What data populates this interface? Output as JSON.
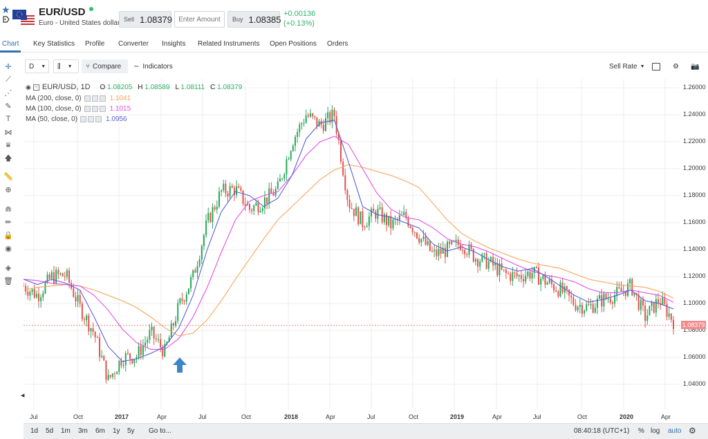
{
  "instrument": {
    "symbol": "EUR/USD",
    "description": "Euro - United States dollar",
    "sell_label": "Sell",
    "sell_price": "1.08379",
    "amount_placeholder": "Enter Amount",
    "buy_label": "Buy",
    "buy_price": "1.08385",
    "change_abs": "+0.00136",
    "change_pct": "(+0.13%)"
  },
  "tabs": [
    "Chart",
    "Key Statistics",
    "Profile",
    "Converter",
    "Insights",
    "Related Instruments",
    "Open Positions",
    "Orders"
  ],
  "toolbar": {
    "interval": "D",
    "compare_label": "Compare",
    "indicators_label": "Indicators",
    "rate_label": "Sell Rate"
  },
  "legend": {
    "title": "EUR/USD, 1D",
    "open_label": "O",
    "open": "1.08205",
    "high_label": "H",
    "high": "1.08589",
    "low_label": "L",
    "low": "1.08111",
    "close_label": "C",
    "close": "1.08379",
    "ma200_label": "MA (200, close, 0)",
    "ma200_value": "1.1041",
    "ma100_label": "MA (100, close, 0)",
    "ma100_value": "1.1015",
    "ma50_label": "MA (50, close, 0)",
    "ma50_value": "1.0956"
  },
  "colors": {
    "up": "#26a65b",
    "down": "#e0534a",
    "ma200": "#f5a55a",
    "ma100": "#e14ee8",
    "ma50": "#5a5fd6",
    "arrow": "#3e85c8",
    "grid": "#ececec",
    "current": "#f08a8a"
  },
  "price_axis": [
    "1.26000",
    "1.24000",
    "1.22000",
    "1.20000",
    "1.18000",
    "1.16000",
    "1.14000",
    "1.12000",
    "1.10000",
    "1.08000",
    "1.06000",
    "1.04000"
  ],
  "current_price_tag": "1.08379",
  "time_axis": [
    {
      "label": "Jul",
      "bold": false
    },
    {
      "label": "Oct",
      "bold": false
    },
    {
      "label": "2017",
      "bold": true
    },
    {
      "label": "Apr",
      "bold": false
    },
    {
      "label": "Jul",
      "bold": false
    },
    {
      "label": "Oct",
      "bold": false
    },
    {
      "label": "2018",
      "bold": true
    },
    {
      "label": "Apr",
      "bold": false
    },
    {
      "label": "Jul",
      "bold": false
    },
    {
      "label": "Oct",
      "bold": false
    },
    {
      "label": "2019",
      "bold": true
    },
    {
      "label": "Apr",
      "bold": false
    },
    {
      "label": "Jul",
      "bold": false
    },
    {
      "label": "Oct",
      "bold": false
    },
    {
      "label": "2020",
      "bold": true
    },
    {
      "label": "Apr",
      "bold": false
    }
  ],
  "footer": {
    "ranges": [
      "1d",
      "5d",
      "1m",
      "3m",
      "6m",
      "1y",
      "5y"
    ],
    "goto_label": "Go to...",
    "clock": "08:40:18 (UTC+1)",
    "pct_label": "%",
    "log_label": "log",
    "auto_label": "auto"
  },
  "chart_data": {
    "type": "line",
    "title": "EUR/USD, 1D",
    "xlabel": "",
    "ylabel": "",
    "ylim": [
      1.03,
      1.265
    ],
    "x": [
      "2016-06",
      "2016-07",
      "2016-08",
      "2016-09",
      "2016-10",
      "2016-11",
      "2016-12",
      "2017-01",
      "2017-02",
      "2017-03",
      "2017-04",
      "2017-05",
      "2017-06",
      "2017-07",
      "2017-08",
      "2017-09",
      "2017-10",
      "2017-11",
      "2017-12",
      "2018-01",
      "2018-02",
      "2018-03",
      "2018-04",
      "2018-05",
      "2018-06",
      "2018-07",
      "2018-08",
      "2018-09",
      "2018-10",
      "2018-11",
      "2018-12",
      "2019-01",
      "2019-02",
      "2019-03",
      "2019-04",
      "2019-05",
      "2019-06",
      "2019-07",
      "2019-08",
      "2019-09",
      "2019-10",
      "2019-11",
      "2019-12",
      "2020-01",
      "2020-02",
      "2020-03",
      "2020-04"
    ],
    "series": [
      {
        "name": "EUR/USD",
        "values": [
          1.113,
          1.106,
          1.12,
          1.121,
          1.097,
          1.078,
          1.043,
          1.06,
          1.061,
          1.078,
          1.064,
          1.098,
          1.12,
          1.16,
          1.183,
          1.185,
          1.17,
          1.176,
          1.185,
          1.22,
          1.24,
          1.232,
          1.24,
          1.175,
          1.16,
          1.168,
          1.158,
          1.165,
          1.15,
          1.136,
          1.14,
          1.145,
          1.134,
          1.13,
          1.122,
          1.12,
          1.123,
          1.116,
          1.11,
          1.1,
          1.097,
          1.103,
          1.107,
          1.113,
          1.09,
          1.103,
          1.087
        ]
      },
      {
        "name": "MA (200, close, 0)",
        "values": [
          1.11,
          1.112,
          1.113,
          1.114,
          1.113,
          1.11,
          1.106,
          1.102,
          1.097,
          1.09,
          1.082,
          1.076,
          1.078,
          1.088,
          1.102,
          1.118,
          1.133,
          1.148,
          1.162,
          1.172,
          1.182,
          1.192,
          1.199,
          1.203,
          1.201,
          1.198,
          1.195,
          1.191,
          1.186,
          1.174,
          1.162,
          1.152,
          1.146,
          1.141,
          1.137,
          1.133,
          1.13,
          1.128,
          1.126,
          1.122,
          1.118,
          1.116,
          1.114,
          1.113,
          1.112,
          1.109,
          1.104
        ]
      },
      {
        "name": "MA (100, close, 0)",
        "values": [
          1.118,
          1.117,
          1.115,
          1.114,
          1.113,
          1.106,
          1.095,
          1.081,
          1.071,
          1.066,
          1.066,
          1.074,
          1.09,
          1.112,
          1.138,
          1.162,
          1.176,
          1.18,
          1.183,
          1.195,
          1.21,
          1.22,
          1.224,
          1.218,
          1.2,
          1.182,
          1.17,
          1.164,
          1.162,
          1.156,
          1.148,
          1.144,
          1.142,
          1.138,
          1.133,
          1.128,
          1.124,
          1.121,
          1.119,
          1.116,
          1.111,
          1.108,
          1.108,
          1.11,
          1.108,
          1.106,
          1.101
        ]
      },
      {
        "name": "MA (50, close, 0)",
        "values": [
          1.118,
          1.114,
          1.118,
          1.115,
          1.11,
          1.09,
          1.068,
          1.057,
          1.059,
          1.063,
          1.068,
          1.082,
          1.106,
          1.14,
          1.168,
          1.183,
          1.18,
          1.172,
          1.178,
          1.195,
          1.222,
          1.234,
          1.236,
          1.205,
          1.172,
          1.166,
          1.164,
          1.16,
          1.156,
          1.144,
          1.139,
          1.142,
          1.138,
          1.132,
          1.127,
          1.124,
          1.126,
          1.12,
          1.113,
          1.106,
          1.101,
          1.103,
          1.106,
          1.11,
          1.102,
          1.1,
          1.096
        ]
      }
    ]
  }
}
